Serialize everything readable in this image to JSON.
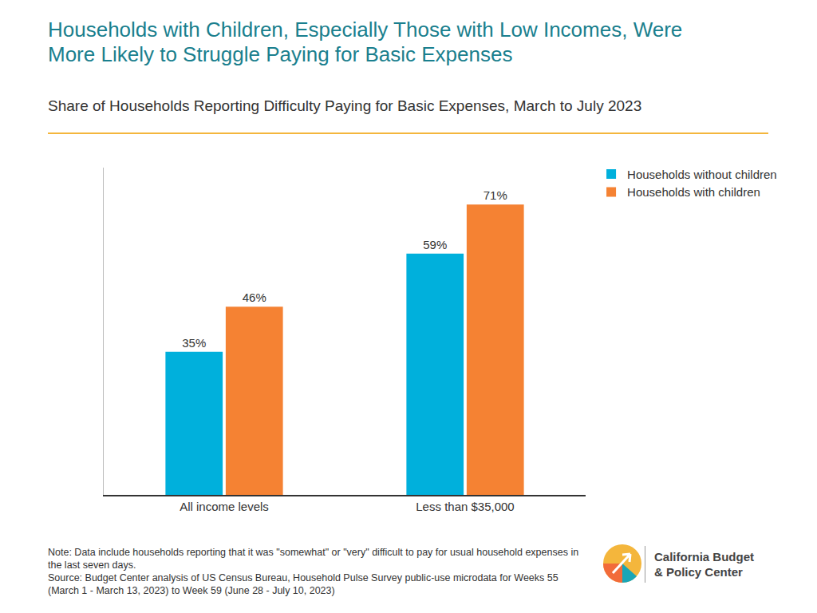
{
  "chart_data": {
    "type": "bar",
    "title": "Households with Children, Especially Those with Low Incomes, Were More Likely to Struggle Paying for Basic Expenses",
    "subtitle": "Share of Households Reporting Difficulty Paying for Basic Expenses, March to July 2023",
    "categories": [
      "All income levels",
      "Less than $35,000"
    ],
    "series": [
      {
        "name": "Households without children",
        "color": "#00b0dc",
        "values": [
          35,
          59
        ],
        "value_labels": [
          "35%",
          "59%"
        ]
      },
      {
        "name": "Households with children",
        "color": "#f58233",
        "values": [
          46,
          71
        ],
        "value_labels": [
          "46%",
          "71%"
        ]
      }
    ],
    "ylim": [
      0,
      80
    ],
    "yticks": [],
    "grid": false,
    "legend": "right",
    "data_labels": true,
    "tick_labels": "x",
    "note": "Note: Data include households reporting that it was \"somewhat\" or \"very\" difficult to pay for usual household expenses in the last seven days.",
    "source": "Source: Budget Center analysis of US Census Bureau, Household Pulse Survey public-use microdata for Weeks 55 (March 1 - March 13, 2023)  to Week 59 (June 28 - July 10, 2023)",
    "credit": [
      "California Budget",
      "& Policy Center"
    ]
  }
}
